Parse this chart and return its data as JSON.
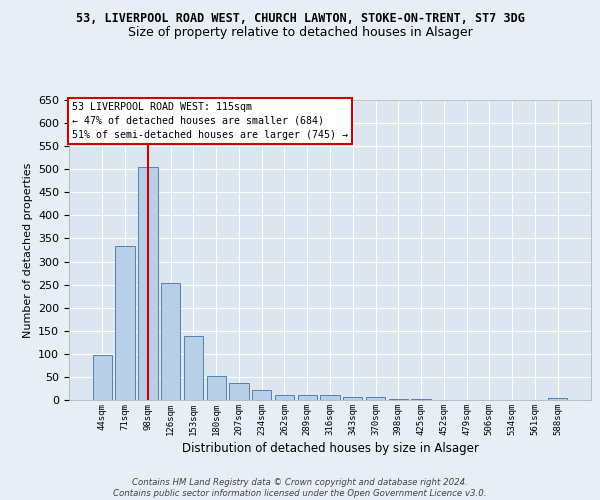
{
  "title1": "53, LIVERPOOL ROAD WEST, CHURCH LAWTON, STOKE-ON-TRENT, ST7 3DG",
  "title2": "Size of property relative to detached houses in Alsager",
  "xlabel": "Distribution of detached houses by size in Alsager",
  "ylabel": "Number of detached properties",
  "categories": [
    "44sqm",
    "71sqm",
    "98sqm",
    "126sqm",
    "153sqm",
    "180sqm",
    "207sqm",
    "234sqm",
    "262sqm",
    "289sqm",
    "316sqm",
    "343sqm",
    "370sqm",
    "398sqm",
    "425sqm",
    "452sqm",
    "479sqm",
    "506sqm",
    "534sqm",
    "561sqm",
    "588sqm"
  ],
  "values": [
    97,
    333,
    504,
    254,
    138,
    53,
    37,
    21,
    10,
    10,
    10,
    6,
    6,
    2,
    2,
    1,
    1,
    1,
    1,
    1,
    5
  ],
  "bar_color": "#b8cfe8",
  "bar_edge_color": "#5580b0",
  "vline_x_index": 2,
  "vline_color": "#cc0000",
  "ylim": [
    0,
    650
  ],
  "annotation_text": "53 LIVERPOOL ROAD WEST: 115sqm\n← 47% of detached houses are smaller (684)\n51% of semi-detached houses are larger (745) →",
  "annotation_box_color": "#ffffff",
  "annotation_box_edge": "#cc0000",
  "footer": "Contains HM Land Registry data © Crown copyright and database right 2024.\nContains public sector information licensed under the Open Government Licence v3.0.",
  "bg_color": "#e8eef5",
  "plot_bg_color": "#dce6f0",
  "grid_color": "#ffffff",
  "title1_fontsize": 8.5,
  "title2_fontsize": 9.0
}
